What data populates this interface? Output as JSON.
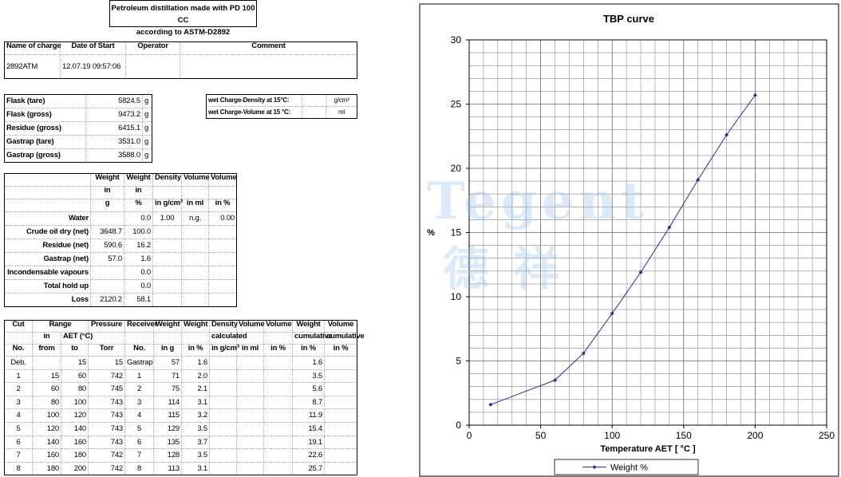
{
  "header": {
    "title_lines": [
      "Petroleum distillation made with PD 100 CC",
      "according to ASTM-D2892"
    ]
  },
  "info": {
    "headers": [
      "Name of charge",
      "Date of Start",
      "Operator",
      "Comment"
    ],
    "values": [
      "2892ATM",
      "12.07.19 09:57:06",
      null,
      null
    ]
  },
  "masses": {
    "rows": [
      [
        "Flask (tare)",
        "5824.5",
        "g"
      ],
      [
        "Flask (gross)",
        "9473.2",
        "g"
      ],
      [
        "Residue (gross)",
        "6415.1",
        "g"
      ],
      [
        "Gastrap (tare)",
        "3531.0",
        "g"
      ],
      [
        "Gastrap (gross)",
        "3588.0",
        "g"
      ]
    ]
  },
  "density": {
    "rows": [
      [
        "wet Charge-Density at 15°C:",
        null,
        "g/cm³"
      ],
      [
        "wet Charge-Volume at 15 °C:",
        null,
        "ml"
      ]
    ]
  },
  "balance": {
    "header_rows": [
      [
        null,
        "Weight",
        "Weight",
        "Density",
        "Volume",
        "Volume"
      ],
      [
        null,
        "in",
        "in",
        null,
        null,
        null
      ],
      [
        null,
        "g",
        "%",
        "in g/cm³",
        "in ml",
        "in %"
      ]
    ],
    "rows": [
      [
        "Water",
        null,
        "0.0",
        "1.00",
        "n.g.",
        "0.00"
      ],
      [
        "Crude oil dry (net)",
        "3648.7",
        "100.0",
        null,
        null,
        null
      ],
      [
        "Residue (net)",
        "590.6",
        "16.2",
        null,
        null,
        null
      ],
      [
        "Gastrap (net)",
        "57.0",
        "1.6",
        null,
        null,
        null
      ],
      [
        "Incondensable vapours",
        null,
        "0.0",
        null,
        null,
        null
      ],
      [
        "Total hold up",
        null,
        "0.0",
        null,
        null,
        null
      ],
      [
        "Loss",
        "2120.2",
        "58.1",
        null,
        null,
        null
      ]
    ]
  },
  "cuts": {
    "header_rows": [
      [
        "Cut",
        "Range",
        "Pressure",
        "Receiver",
        "Weight",
        "Weight",
        "Density",
        "Volume",
        "Volume",
        "Weight",
        "Volume"
      ],
      [
        null,
        "in",
        "AET (°C)",
        null,
        null,
        null,
        null,
        "calculated",
        null,
        null,
        "cumulative",
        "cumulative"
      ],
      [
        "No.",
        "from",
        "to",
        "Torr",
        "No.",
        "in g",
        "in %",
        "in g/cm³",
        "in ml",
        "in %",
        "in %",
        "in %"
      ]
    ],
    "rows": [
      [
        "Deb.",
        null,
        "15",
        "15",
        "Gastrap",
        "57",
        "1.6",
        null,
        null,
        null,
        "1.6",
        null
      ],
      [
        "1",
        "15",
        "60",
        "742",
        "1",
        "71",
        "2.0",
        null,
        null,
        null,
        "3.5",
        null
      ],
      [
        "2",
        "60",
        "80",
        "745",
        "2",
        "75",
        "2.1",
        null,
        null,
        null,
        "5.6",
        null
      ],
      [
        "3",
        "80",
        "100",
        "743",
        "3",
        "114",
        "3.1",
        null,
        null,
        null,
        "8.7",
        null
      ],
      [
        "4",
        "100",
        "120",
        "743",
        "4",
        "115",
        "3.2",
        null,
        null,
        null,
        "11.9",
        null
      ],
      [
        "5",
        "120",
        "140",
        "743",
        "5",
        "129",
        "3.5",
        null,
        null,
        null,
        "15.4",
        null
      ],
      [
        "6",
        "140",
        "160",
        "743",
        "6",
        "135",
        "3.7",
        null,
        null,
        null,
        "19.1",
        null
      ],
      [
        "7",
        "160",
        "180",
        "742",
        "7",
        "128",
        "3.5",
        null,
        null,
        null,
        "22.6",
        null
      ],
      [
        "8",
        "180",
        "200",
        "742",
        "8",
        "113",
        "3.1",
        null,
        null,
        null,
        "25.7",
        null
      ]
    ]
  },
  "watermark": {
    "text": "Tegent",
    "subtext": "德祥"
  },
  "chart_data": {
    "type": "line",
    "title": "TBP curve",
    "x_label": "Temperature AET [ °C ]",
    "y_label": "%",
    "x": [
      15,
      60,
      80,
      100,
      120,
      140,
      160,
      180,
      200
    ],
    "series": [
      {
        "name": "Weight %",
        "color": "#2e2e8a",
        "values": [
          1.6,
          3.5,
          5.6,
          8.7,
          11.9,
          15.4,
          19.1,
          22.6,
          25.7
        ]
      }
    ],
    "xlim": [
      0,
      250
    ],
    "xticks": [
      0,
      50,
      100,
      150,
      200,
      250
    ],
    "ylim": [
      0,
      30
    ],
    "yticks": [
      0,
      5,
      10,
      15,
      20,
      25,
      30
    ],
    "grid": true,
    "legend": "bottom"
  }
}
